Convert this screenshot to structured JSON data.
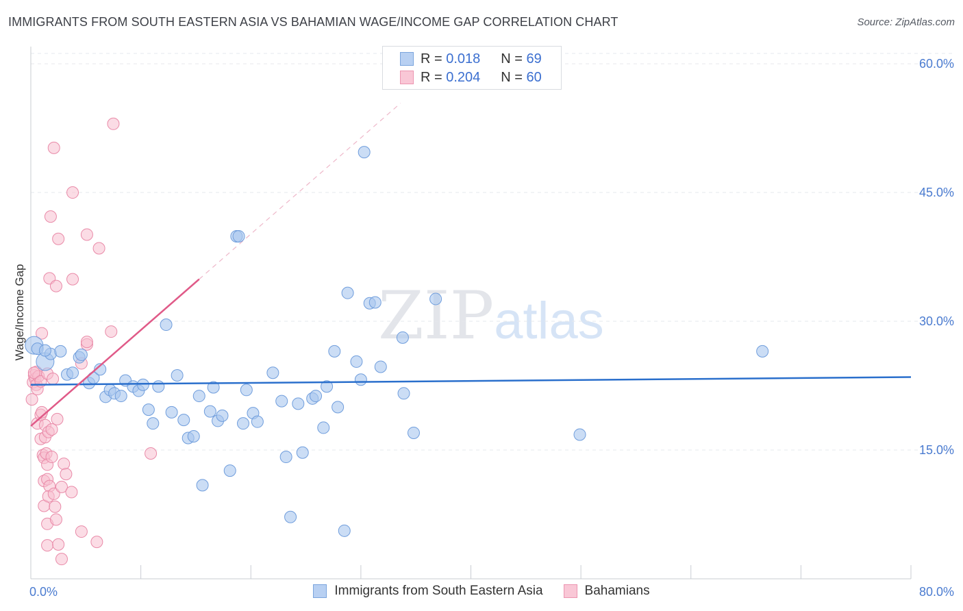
{
  "header": {
    "title": "IMMIGRANTS FROM SOUTH EASTERN ASIA VS BAHAMIAN WAGE/INCOME GAP CORRELATION CHART",
    "source": "Source: ZipAtlas.com"
  },
  "watermark": {
    "zip": "ZIP",
    "atlas": "atlas"
  },
  "legend": {
    "rows": [
      {
        "r_label": "R =",
        "r_value": "0.018",
        "n_label": "N =",
        "n_value": "69"
      },
      {
        "r_label": "R =",
        "r_value": "0.204",
        "n_label": "N =",
        "n_value": "60"
      }
    ]
  },
  "bottom_legend": {
    "series_a": "Immigrants from South Eastern Asia",
    "series_b": "Bahamians"
  },
  "colors": {
    "blue_fill": "#a9c6ef",
    "blue_stroke": "#6f9ddc",
    "blue_line": "#2a6fcc",
    "pink_fill": "#f7bfd0",
    "pink_stroke": "#e98aa8",
    "pink_line": "#e05a88",
    "grid": "#e6e8ec",
    "tick_text": "#4a7bd0"
  },
  "chart_data": {
    "type": "scatter",
    "title": "IMMIGRANTS FROM SOUTH EASTERN ASIA VS BAHAMIAN WAGE/INCOME GAP CORRELATION CHART",
    "xlabel": "",
    "ylabel": "Wage/Income Gap",
    "xlim": [
      0,
      80
    ],
    "ylim": [
      0,
      62
    ],
    "x_tick_labels": [
      "0.0%",
      "80.0%"
    ],
    "y_ticks": [
      15,
      30,
      45,
      60
    ],
    "y_tick_labels": [
      "15.0%",
      "30.0%",
      "45.0%",
      "60.0%"
    ],
    "grid": true,
    "legend_position": "top-center",
    "series": [
      {
        "name": "Immigrants from South Eastern Asia",
        "color": "#a9c6ef",
        "trend": {
          "x": [
            0,
            80
          ],
          "y": [
            22.6,
            23.5
          ]
        },
        "points": [
          [
            0.3,
            27.2
          ],
          [
            0.6,
            26.8
          ],
          [
            1.3,
            25.3
          ],
          [
            1.8,
            26.2
          ],
          [
            2.7,
            26.5
          ],
          [
            3.3,
            23.8
          ],
          [
            3.8,
            24.0
          ],
          [
            4.4,
            25.8
          ],
          [
            4.6,
            26.1
          ],
          [
            5.3,
            22.8
          ],
          [
            5.7,
            23.4
          ],
          [
            6.3,
            24.4
          ],
          [
            6.8,
            21.2
          ],
          [
            7.2,
            22.0
          ],
          [
            7.6,
            21.6
          ],
          [
            8.2,
            21.3
          ],
          [
            8.6,
            23.1
          ],
          [
            9.3,
            22.4
          ],
          [
            9.8,
            21.9
          ],
          [
            10.2,
            22.6
          ],
          [
            10.7,
            19.7
          ],
          [
            11.1,
            18.1
          ],
          [
            11.6,
            22.4
          ],
          [
            12.3,
            29.6
          ],
          [
            12.8,
            19.4
          ],
          [
            13.3,
            23.7
          ],
          [
            13.9,
            18.5
          ],
          [
            14.3,
            16.4
          ],
          [
            14.8,
            16.6
          ],
          [
            15.3,
            21.3
          ],
          [
            15.6,
            10.9
          ],
          [
            16.3,
            19.5
          ],
          [
            16.6,
            22.3
          ],
          [
            17.0,
            18.4
          ],
          [
            17.4,
            19.0
          ],
          [
            18.1,
            12.6
          ],
          [
            18.7,
            39.9
          ],
          [
            18.9,
            39.9
          ],
          [
            19.3,
            18.1
          ],
          [
            19.6,
            22.0
          ],
          [
            20.2,
            19.3
          ],
          [
            20.6,
            18.3
          ],
          [
            22.0,
            24.0
          ],
          [
            22.8,
            20.7
          ],
          [
            23.2,
            14.2
          ],
          [
            23.6,
            7.2
          ],
          [
            24.3,
            20.4
          ],
          [
            24.7,
            14.7
          ],
          [
            25.6,
            21.0
          ],
          [
            25.9,
            21.3
          ],
          [
            26.6,
            17.6
          ],
          [
            26.9,
            22.4
          ],
          [
            27.6,
            26.5
          ],
          [
            27.9,
            20.0
          ],
          [
            28.5,
            5.6
          ],
          [
            28.8,
            33.3
          ],
          [
            29.6,
            25.3
          ],
          [
            30.0,
            23.2
          ],
          [
            30.3,
            49.7
          ],
          [
            30.8,
            32.1
          ],
          [
            31.3,
            32.2
          ],
          [
            31.8,
            24.7
          ],
          [
            33.8,
            28.1
          ],
          [
            33.9,
            21.6
          ],
          [
            34.8,
            17.0
          ],
          [
            36.8,
            32.6
          ],
          [
            49.9,
            16.8
          ],
          [
            66.5,
            26.5
          ],
          [
            1.3,
            26.6
          ]
        ]
      },
      {
        "name": "Bahamians",
        "color": "#f7bfd0",
        "trend": {
          "x": [
            0,
            15.3
          ],
          "y": [
            17.8,
            34.9
          ]
        },
        "trend_extension": {
          "x": [
            15.3,
            33.6
          ],
          "y": [
            34.9,
            55.4
          ]
        },
        "points": [
          [
            0.1,
            20.9
          ],
          [
            0.2,
            22.9
          ],
          [
            0.3,
            23.7
          ],
          [
            0.4,
            23.3
          ],
          [
            0.5,
            22.6
          ],
          [
            0.6,
            22.1
          ],
          [
            0.5,
            24.1
          ],
          [
            0.7,
            23.6
          ],
          [
            0.6,
            18.1
          ],
          [
            0.9,
            16.3
          ],
          [
            0.9,
            19.1
          ],
          [
            1.0,
            19.4
          ],
          [
            1.0,
            28.6
          ],
          [
            1.1,
            14.4
          ],
          [
            1.2,
            14.1
          ],
          [
            1.2,
            11.4
          ],
          [
            1.2,
            8.5
          ],
          [
            1.3,
            17.9
          ],
          [
            1.3,
            16.5
          ],
          [
            1.4,
            14.6
          ],
          [
            1.5,
            13.3
          ],
          [
            1.5,
            11.6
          ],
          [
            1.5,
            6.4
          ],
          [
            1.5,
            3.9
          ],
          [
            1.6,
            17.1
          ],
          [
            1.7,
            10.8
          ],
          [
            1.6,
            9.6
          ],
          [
            1.7,
            35.0
          ],
          [
            1.8,
            42.2
          ],
          [
            1.9,
            17.4
          ],
          [
            1.9,
            14.2
          ],
          [
            2.1,
            50.2
          ],
          [
            2.1,
            9.9
          ],
          [
            2.2,
            8.4
          ],
          [
            2.3,
            6.9
          ],
          [
            2.3,
            34.1
          ],
          [
            2.4,
            18.6
          ],
          [
            2.5,
            39.6
          ],
          [
            2.5,
            4.0
          ],
          [
            2.8,
            10.7
          ],
          [
            2.8,
            2.3
          ],
          [
            3.0,
            13.4
          ],
          [
            3.2,
            12.2
          ],
          [
            3.7,
            10.1
          ],
          [
            3.8,
            34.9
          ],
          [
            3.8,
            45.0
          ],
          [
            4.6,
            25.1
          ],
          [
            4.6,
            5.5
          ],
          [
            5.1,
            27.3
          ],
          [
            5.1,
            27.6
          ],
          [
            5.1,
            40.1
          ],
          [
            6.2,
            38.5
          ],
          [
            6.0,
            4.3
          ],
          [
            7.3,
            28.8
          ],
          [
            7.5,
            53.0
          ],
          [
            10.9,
            14.6
          ],
          [
            0.3,
            24.0
          ],
          [
            0.9,
            23.0
          ],
          [
            1.5,
            23.9
          ],
          [
            2.0,
            23.3
          ]
        ]
      }
    ]
  }
}
